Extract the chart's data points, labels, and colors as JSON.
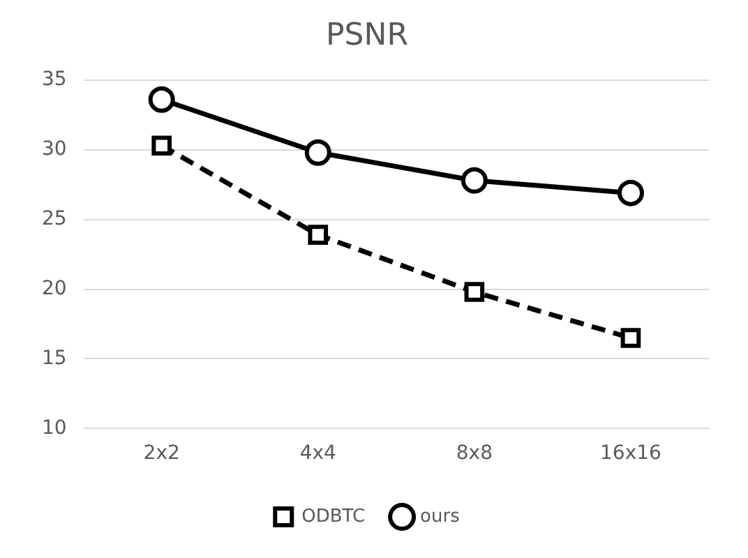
{
  "chart_data": {
    "type": "line",
    "title": "PSNR",
    "categories": [
      "2x2",
      "4x4",
      "8x8",
      "16x16"
    ],
    "series": [
      {
        "name": "ODBTC",
        "color": "#000000",
        "values": [
          30.3,
          23.9,
          19.8,
          16.5
        ],
        "line_style": "dashed",
        "marker": "square"
      },
      {
        "name": "ours",
        "color": "#000000",
        "values": [
          33.6,
          29.8,
          27.8,
          26.9
        ],
        "line_style": "solid",
        "marker": "circle"
      }
    ],
    "ylim": [
      10,
      35
    ],
    "yticks": [
      10,
      15,
      20,
      25,
      30,
      35
    ],
    "grid": "y",
    "legend": "bottom"
  }
}
